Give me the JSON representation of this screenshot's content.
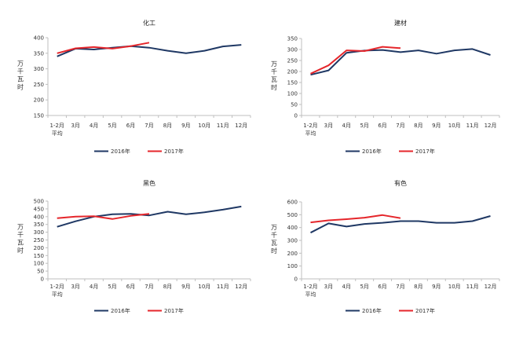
{
  "chart_data": [
    {
      "type": "line",
      "title": "化工",
      "ylabel": "万千瓦时",
      "xlabel": "",
      "categories": [
        "1-2月 平均",
        "3月",
        "4月",
        "5月",
        "6月",
        "7月",
        "8月",
        "9月",
        "10月",
        "11月",
        "12月"
      ],
      "ylim": [
        150,
        400
      ],
      "yticks": [
        150,
        200,
        250,
        300,
        350,
        400
      ],
      "grid": false,
      "legend": "bottom",
      "series": [
        {
          "name": "2016年",
          "color": "#1f3864",
          "values": [
            340,
            365,
            362,
            368,
            373,
            368,
            358,
            350,
            358,
            372,
            377
          ]
        },
        {
          "name": "2017年",
          "color": "#e5262b",
          "values": [
            350,
            366,
            370,
            365,
            373,
            384
          ]
        }
      ]
    },
    {
      "type": "line",
      "title": "建材",
      "ylabel": "万千瓦时",
      "xlabel": "",
      "categories": [
        "1-2月 平均",
        "3月",
        "4月",
        "5月",
        "6月",
        "7月",
        "8月",
        "9月",
        "10月",
        "11月",
        "12月"
      ],
      "ylim": [
        0,
        350
      ],
      "yticks": [
        0,
        50,
        100,
        150,
        200,
        250,
        300,
        350
      ],
      "grid": false,
      "legend": "bottom",
      "series": [
        {
          "name": "2016年",
          "color": "#1f3864",
          "values": [
            185,
            205,
            285,
            295,
            298,
            288,
            296,
            281,
            296,
            302,
            275
          ]
        },
        {
          "name": "2017年",
          "color": "#e5262b",
          "values": [
            190,
            228,
            296,
            293,
            312,
            306
          ]
        }
      ]
    },
    {
      "type": "line",
      "title": "黑色",
      "ylabel": "万千瓦时",
      "xlabel": "",
      "categories": [
        "1-2月 平均",
        "3月",
        "4月",
        "5月",
        "6月",
        "7月",
        "8月",
        "9月",
        "10月",
        "11月",
        "12月"
      ],
      "ylim": [
        0,
        500
      ],
      "yticks": [
        0,
        50,
        100,
        150,
        200,
        250,
        300,
        350,
        400,
        450,
        500
      ],
      "grid": false,
      "legend": "bottom",
      "series": [
        {
          "name": "2016年",
          "color": "#1f3864",
          "values": [
            335,
            370,
            400,
            415,
            418,
            408,
            432,
            415,
            428,
            445,
            465
          ]
        },
        {
          "name": "2017年",
          "color": "#e5262b",
          "values": [
            390,
            400,
            403,
            385,
            405,
            418
          ]
        }
      ]
    },
    {
      "type": "line",
      "title": "有色",
      "ylabel": "万千瓦时",
      "xlabel": "",
      "categories": [
        "1-2月 平均",
        "3月",
        "4月",
        "5月",
        "6月",
        "7月",
        "8月",
        "9月",
        "10月",
        "11月",
        "12月"
      ],
      "ylim": [
        0,
        600
      ],
      "yticks": [
        0,
        100,
        200,
        300,
        400,
        500,
        600
      ],
      "grid": false,
      "legend": "bottom",
      "series": [
        {
          "name": "2016年",
          "color": "#1f3864",
          "values": [
            360,
            432,
            408,
            428,
            437,
            450,
            450,
            437,
            437,
            450,
            490
          ]
        },
        {
          "name": "2017年",
          "color": "#e5262b",
          "values": [
            440,
            456,
            465,
            477,
            497,
            473
          ]
        }
      ]
    }
  ]
}
